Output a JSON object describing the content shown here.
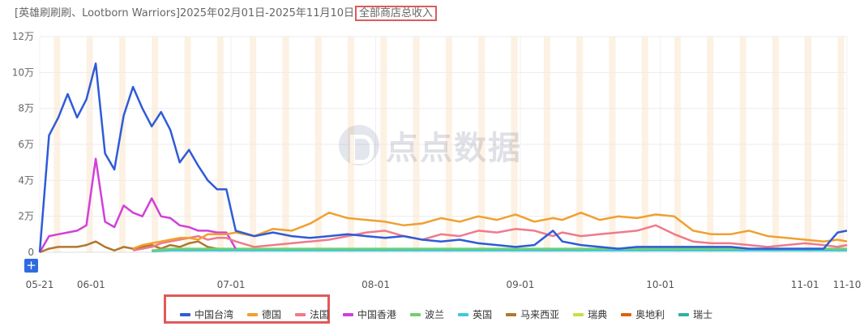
{
  "header": {
    "title": "[英雄刷刷刷、Lootborn Warriors]2025年02月01日-2025年11月10日",
    "highlight": "全部商店总收入"
  },
  "toolbar": {
    "zoom_label": "+"
  },
  "watermark": {
    "text": "点点数据"
  },
  "chart_data": {
    "type": "line",
    "x": [
      "2025-05-21",
      "2025-05-23",
      "2025-05-25",
      "2025-05-27",
      "2025-05-29",
      "2025-05-31",
      "2025-06-02",
      "2025-06-04",
      "2025-06-06",
      "2025-06-08",
      "2025-06-10",
      "2025-06-12",
      "2025-06-14",
      "2025-06-16",
      "2025-06-18",
      "2025-06-20",
      "2025-06-22",
      "2025-06-24",
      "2025-06-26",
      "2025-06-28",
      "2025-06-30",
      "2025-07-02",
      "2025-07-06",
      "2025-07-10",
      "2025-07-14",
      "2025-07-18",
      "2025-07-22",
      "2025-07-26",
      "2025-07-30",
      "2025-08-03",
      "2025-08-07",
      "2025-08-11",
      "2025-08-15",
      "2025-08-19",
      "2025-08-23",
      "2025-08-27",
      "2025-08-31",
      "2025-09-04",
      "2025-09-08",
      "2025-09-10",
      "2025-09-14",
      "2025-09-18",
      "2025-09-22",
      "2025-09-26",
      "2025-09-30",
      "2025-10-04",
      "2025-10-08",
      "2025-10-12",
      "2025-10-16",
      "2025-10-20",
      "2025-10-24",
      "2025-10-28",
      "2025-11-01",
      "2025-11-05",
      "2025-11-08",
      "2025-11-10"
    ],
    "x_tick_labels": [
      "05-21",
      "06-01",
      "07-01",
      "08-01",
      "09-01",
      "10-01",
      "11-01",
      "11-10"
    ],
    "x_range": [
      "2025-05-21",
      "2025-11-10"
    ],
    "y_tick_labels": [
      "0",
      "2万",
      "4万",
      "6万",
      "8万",
      "10万",
      "12万"
    ],
    "ylim": [
      0,
      120000
    ],
    "weekend_shading": true,
    "series": [
      {
        "name": "中国台湾",
        "color": "#2f5bd8",
        "values": [
          0,
          65000,
          75000,
          88000,
          75000,
          85000,
          105000,
          55000,
          46000,
          76000,
          92000,
          80000,
          70000,
          78000,
          68000,
          50000,
          57000,
          48000,
          40000,
          35000,
          35000,
          12000,
          9000,
          11000,
          9000,
          8000,
          9000,
          10000,
          9000,
          8000,
          9000,
          7000,
          6000,
          7000,
          5000,
          4000,
          3000,
          4000,
          12000,
          6000,
          4000,
          3000,
          2000,
          3000,
          3000,
          3000,
          3000,
          3000,
          3000,
          2000,
          2000,
          2000,
          2000,
          2000,
          11000,
          12000
        ]
      },
      {
        "name": "德国",
        "color": "#f0a030",
        "values": [
          null,
          null,
          null,
          null,
          null,
          null,
          null,
          null,
          null,
          null,
          2000,
          4000,
          5000,
          6000,
          7000,
          8000,
          8000,
          7000,
          10000,
          10000,
          10000,
          11000,
          9000,
          13000,
          12000,
          16000,
          22000,
          19000,
          18000,
          17000,
          15000,
          16000,
          19000,
          17000,
          20000,
          18000,
          21000,
          17000,
          19000,
          18000,
          22000,
          18000,
          20000,
          19000,
          21000,
          20000,
          12000,
          10000,
          10000,
          12000,
          9000,
          8000,
          7000,
          6000,
          7000,
          6000
        ]
      },
      {
        "name": "法国",
        "color": "#f07a8a",
        "values": [
          null,
          null,
          null,
          null,
          null,
          null,
          null,
          null,
          null,
          null,
          1000,
          2000,
          3000,
          5000,
          6000,
          7000,
          8000,
          9000,
          7000,
          8000,
          8000,
          6000,
          3000,
          4000,
          5000,
          6000,
          7000,
          9000,
          11000,
          12000,
          9000,
          7000,
          10000,
          9000,
          12000,
          11000,
          13000,
          12000,
          9000,
          11000,
          9000,
          10000,
          11000,
          12000,
          15000,
          10000,
          6000,
          5000,
          5000,
          4000,
          3000,
          4000,
          5000,
          4000,
          3000,
          4000
        ]
      },
      {
        "name": "中国香港",
        "color": "#d040d8",
        "values": [
          0,
          9000,
          10000,
          11000,
          12000,
          15000,
          52000,
          17000,
          14000,
          26000,
          22000,
          20000,
          30000,
          20000,
          19000,
          15000,
          14000,
          12000,
          12000,
          11000,
          11000,
          2000,
          null,
          null,
          null,
          null,
          null,
          null,
          null,
          null,
          null,
          null,
          null,
          null,
          null,
          null,
          null,
          null,
          null,
          null,
          null,
          null,
          null,
          null,
          null,
          null,
          null,
          null,
          null,
          null,
          null,
          null,
          null,
          null,
          3000,
          4000
        ]
      },
      {
        "name": "波兰",
        "color": "#70d070",
        "values": [
          null,
          null,
          null,
          null,
          null,
          null,
          null,
          null,
          null,
          null,
          null,
          null,
          1000,
          1500,
          2000,
          2000,
          2000,
          2000,
          2000,
          2000,
          2000,
          2000,
          2000,
          2000,
          2000,
          2000,
          2000,
          2000,
          2000,
          2000,
          2000,
          2000,
          2000,
          2000,
          2000,
          2000,
          2000,
          2000,
          2000,
          2000,
          2000,
          2000,
          2000,
          2000,
          2000,
          2000,
          2000,
          2000,
          2000,
          2000,
          2000,
          2000,
          2000,
          2000,
          2000,
          2000
        ]
      },
      {
        "name": "英国",
        "color": "#40c8d8",
        "values": [
          null,
          null,
          null,
          null,
          null,
          null,
          null,
          null,
          null,
          null,
          null,
          null,
          500,
          800,
          1000,
          1000,
          1000,
          1000,
          1000,
          1000,
          1000,
          1000,
          1000,
          1000,
          1000,
          1000,
          1000,
          1000,
          1000,
          1000,
          1000,
          1000,
          1000,
          1000,
          1000,
          1000,
          1000,
          1000,
          1000,
          1000,
          1000,
          1000,
          1000,
          1000,
          1000,
          1000,
          1000,
          1000,
          1000,
          1000,
          1000,
          1000,
          1000,
          1000,
          1000,
          1000
        ]
      },
      {
        "name": "马来西亚",
        "color": "#b07830",
        "values": [
          0,
          2000,
          3000,
          3000,
          3000,
          4000,
          6000,
          3000,
          1000,
          3000,
          2000,
          3000,
          4000,
          2000,
          4000,
          3000,
          5000,
          6000,
          3000,
          2000,
          1000,
          1000,
          1000,
          1000,
          1000,
          1000,
          1000,
          1000,
          1000,
          1000,
          1000,
          1000,
          1000,
          1000,
          1000,
          1000,
          1000,
          1000,
          1000,
          1000,
          1000,
          1000,
          1000,
          1000,
          1000,
          1000,
          1000,
          1000,
          1000,
          1000,
          1000,
          1000,
          1000,
          1000,
          1000,
          1000
        ]
      },
      {
        "name": "瑞典",
        "color": "#c8e040",
        "values": [
          null,
          null,
          null,
          null,
          null,
          null,
          null,
          null,
          null,
          null,
          null,
          null,
          null,
          null,
          null,
          null,
          null,
          null,
          null,
          null,
          null,
          null,
          null,
          null,
          null,
          null,
          null,
          null,
          null,
          null,
          null,
          null,
          null,
          null,
          null,
          null,
          null,
          null,
          null,
          null,
          null,
          null,
          null,
          null,
          null,
          null,
          null,
          null,
          null,
          null,
          null,
          null,
          null,
          null,
          null,
          null
        ]
      },
      {
        "name": "奥地利",
        "color": "#e06010",
        "values": [
          null,
          null,
          null,
          null,
          null,
          null,
          null,
          null,
          null,
          null,
          null,
          null,
          null,
          null,
          null,
          null,
          null,
          null,
          null,
          null,
          null,
          null,
          null,
          null,
          null,
          null,
          null,
          null,
          null,
          null,
          null,
          null,
          null,
          null,
          null,
          null,
          null,
          null,
          null,
          null,
          null,
          null,
          null,
          null,
          null,
          null,
          null,
          null,
          null,
          null,
          null,
          null,
          null,
          null,
          null,
          null
        ]
      },
      {
        "name": "瑞士",
        "color": "#30b0a0",
        "values": [
          null,
          null,
          null,
          null,
          null,
          null,
          null,
          null,
          null,
          null,
          null,
          null,
          null,
          null,
          null,
          null,
          null,
          null,
          null,
          null,
          null,
          null,
          null,
          null,
          null,
          null,
          null,
          null,
          null,
          null,
          null,
          null,
          null,
          null,
          null,
          null,
          null,
          null,
          null,
          null,
          null,
          null,
          null,
          null,
          null,
          null,
          null,
          null,
          null,
          null,
          null,
          null,
          null,
          null,
          null,
          null
        ]
      }
    ]
  }
}
